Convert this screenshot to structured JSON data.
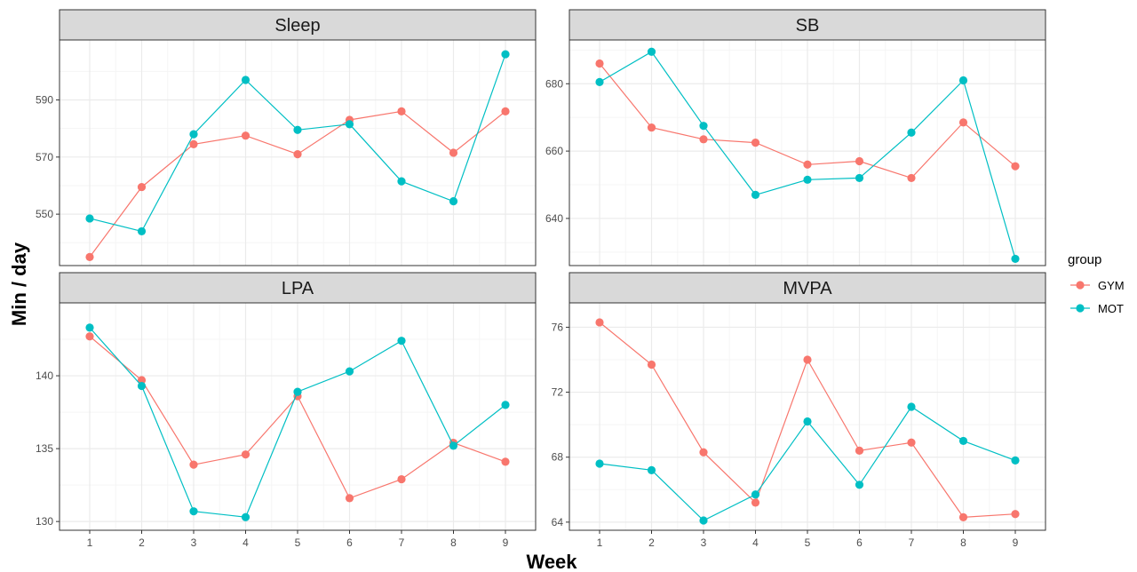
{
  "colors": {
    "GYM": "#F8766D",
    "MOT": "#00BFC4",
    "strip_bg": "#D9D9D9",
    "grid_major": "#EBEBEB",
    "grid_minor": "#F5F5F5",
    "panel_border": "#333333"
  },
  "chart_data": {
    "type": "line",
    "xlabel": "Week",
    "ylabel": "Min / day",
    "legend_title": "group",
    "legend_position": "right",
    "grid": true,
    "x": [
      1,
      2,
      3,
      4,
      5,
      6,
      7,
      8,
      9
    ],
    "x_tick_labels": [
      "1",
      "2",
      "3",
      "4",
      "5",
      "6",
      "7",
      "8",
      "9"
    ],
    "series_names": [
      "GYM",
      "MOT"
    ],
    "panels": [
      {
        "title": "Sleep",
        "ylim": [
          532,
          611
        ],
        "yticks": [
          550,
          570,
          590
        ],
        "series": [
          {
            "name": "GYM",
            "values": [
              535,
              559.5,
              574.5,
              577.5,
              571,
              583,
              586,
              571.5,
              586
            ]
          },
          {
            "name": "MOT",
            "values": [
              548.5,
              544,
              578,
              597,
              579.5,
              581.5,
              561.5,
              554.5,
              606
            ]
          }
        ]
      },
      {
        "title": "SB",
        "ylim": [
          626,
          693
        ],
        "yticks": [
          640,
          660,
          680
        ],
        "series": [
          {
            "name": "GYM",
            "values": [
              686,
              667,
              663.5,
              662.5,
              656,
              657,
              652,
              668.5,
              655.5
            ]
          },
          {
            "name": "MOT",
            "values": [
              680.5,
              689.5,
              667.5,
              647,
              651.5,
              652,
              665.5,
              681,
              628
            ]
          }
        ]
      },
      {
        "title": "LPA",
        "ylim": [
          129.4,
          145.0
        ],
        "yticks": [
          130,
          135,
          140
        ],
        "series": [
          {
            "name": "GYM",
            "values": [
              142.7,
              139.7,
              133.9,
              134.6,
              138.6,
              131.6,
              132.9,
              135.4,
              134.1
            ]
          },
          {
            "name": "MOT",
            "values": [
              143.3,
              139.3,
              130.7,
              130.3,
              138.9,
              140.3,
              142.4,
              135.2,
              138.0
            ]
          }
        ]
      },
      {
        "title": "MVPA",
        "ylim": [
          63.5,
          77.5
        ],
        "yticks": [
          64,
          68,
          72,
          76
        ],
        "series": [
          {
            "name": "GYM",
            "values": [
              76.3,
              73.7,
              68.3,
              65.2,
              74.0,
              68.4,
              68.9,
              64.3,
              64.5
            ]
          },
          {
            "name": "MOT",
            "values": [
              67.6,
              67.2,
              64.1,
              65.7,
              70.2,
              66.3,
              71.1,
              69.0,
              67.8
            ]
          }
        ]
      }
    ]
  }
}
